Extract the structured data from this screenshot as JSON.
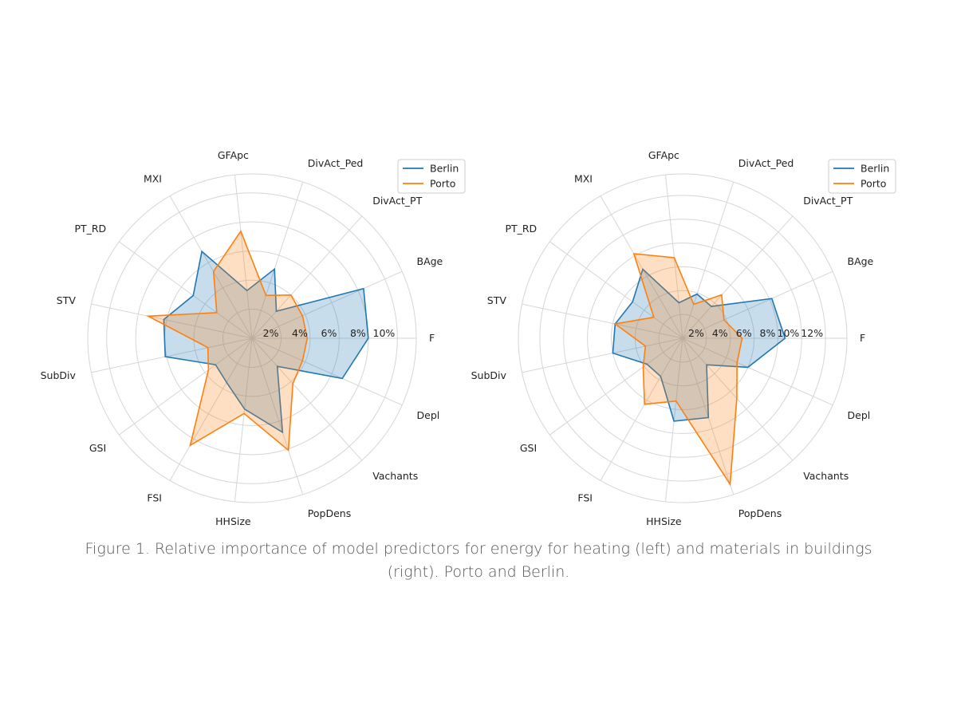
{
  "caption": "Figure 1. Relative importance of model predictors for energy for heating (left) and materials in buildings (right). Porto and Berlin.",
  "chart_data": [
    {
      "type": "radar",
      "title": "",
      "categories": [
        "F",
        "BAge",
        "DivAct_PT",
        "DivAct_Ped",
        "GFApc",
        "MXI",
        "PT_RD",
        "STV",
        "SubDiv",
        "GSI",
        "FSI",
        "HHSize",
        "PopDens",
        "Vachants",
        "Depl"
      ],
      "rmax": 11.3,
      "ticks": [
        2,
        4,
        6,
        8,
        10
      ],
      "tick_labels": [
        "2%",
        "4%",
        "6%",
        "8%",
        "10%"
      ],
      "legend": {
        "placement": "top-right",
        "entries": [
          "Berlin",
          "Porto"
        ]
      },
      "series": [
        {
          "name": "Berlin",
          "color": "#1f77b4",
          "values": [
            8.0,
            8.4,
            2.5,
            5.0,
            3.3,
            6.9,
            5.0,
            6.2,
            6.1,
            3.1,
            3.5,
            4.9,
            6.8,
            2.6,
            6.8
          ]
        },
        {
          "name": "Porto",
          "color": "#ff7f0e",
          "values": [
            3.8,
            3.8,
            4.0,
            3.1,
            7.4,
            5.3,
            3.0,
            7.3,
            3.1,
            3.7,
            8.5,
            5.2,
            8.1,
            4.2,
            3.8
          ]
        }
      ]
    },
    {
      "type": "radar",
      "title": "",
      "categories": [
        "F",
        "BAge",
        "DivAct_PT",
        "DivAct_Ped",
        "GFApc",
        "MXI",
        "PT_RD",
        "STV",
        "SubDiv",
        "GSI",
        "FSI",
        "HHSize",
        "PopDens",
        "Vachants",
        "Depl"
      ],
      "rmax": 13.8,
      "ticks": [
        2,
        4,
        6,
        8,
        10,
        12
      ],
      "tick_labels": [
        "2%",
        "4%",
        "6%",
        "8%",
        "10%",
        "12%"
      ],
      "legend": {
        "placement": "top-right",
        "entries": [
          "Berlin",
          "Porto"
        ]
      },
      "series": [
        {
          "name": "Berlin",
          "color": "#1f77b4",
          "values": [
            8.6,
            8.2,
            3.6,
            3.9,
            3.0,
            6.7,
            5.2,
            5.8,
            6.0,
            3.7,
            3.7,
            7.0,
            7.0,
            3.0,
            6.0
          ]
        },
        {
          "name": "Porto",
          "color": "#ff7f0e",
          "values": [
            5.0,
            3.8,
            4.9,
            3.0,
            6.8,
            8.2,
            3.0,
            5.8,
            3.2,
            4.1,
            6.4,
            5.3,
            12.9,
            6.8,
            5.0
          ]
        }
      ]
    }
  ]
}
